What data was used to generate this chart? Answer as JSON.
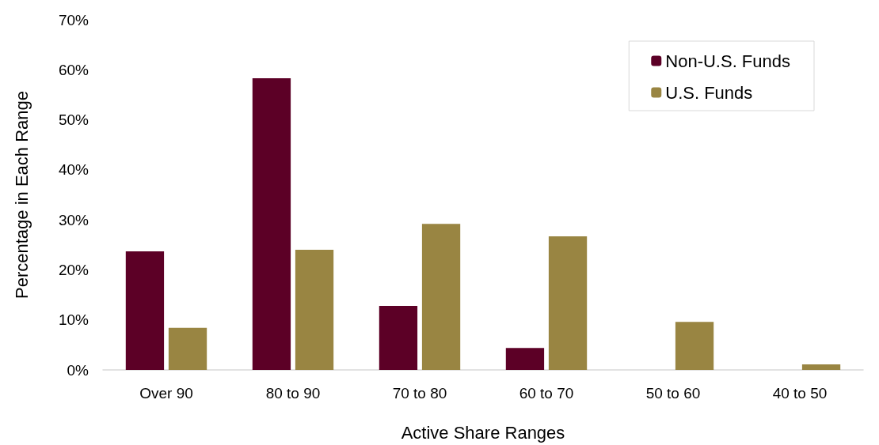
{
  "chart_data": {
    "type": "bar",
    "xlabel": "Active Share Ranges",
    "ylabel": "Percentage in Each Range",
    "categories": [
      "Over 90",
      "80 to 90",
      "70 to 80",
      "60 to 70",
      "50 to 60",
      "40 to 50"
    ],
    "series": [
      {
        "name": "Non-U.S. Funds",
        "color": "#5c0026",
        "values": [
          23.7,
          58.3,
          12.8,
          4.4,
          0,
          0
        ]
      },
      {
        "name": "U.S. Funds",
        "color": "#998542",
        "values": [
          8.4,
          24.0,
          29.2,
          26.7,
          9.6,
          1.1
        ]
      }
    ],
    "ylim": [
      0,
      70
    ],
    "yticks": [
      {
        "value": 0,
        "label": "0%"
      },
      {
        "value": 10,
        "label": "10%"
      },
      {
        "value": 20,
        "label": "20%"
      },
      {
        "value": 30,
        "label": "30%"
      },
      {
        "value": 40,
        "label": "40%"
      },
      {
        "value": 50,
        "label": "50%"
      },
      {
        "value": 60,
        "label": "60%"
      },
      {
        "value": 70,
        "label": "70%"
      }
    ],
    "grid": false,
    "legend": "top right"
  }
}
